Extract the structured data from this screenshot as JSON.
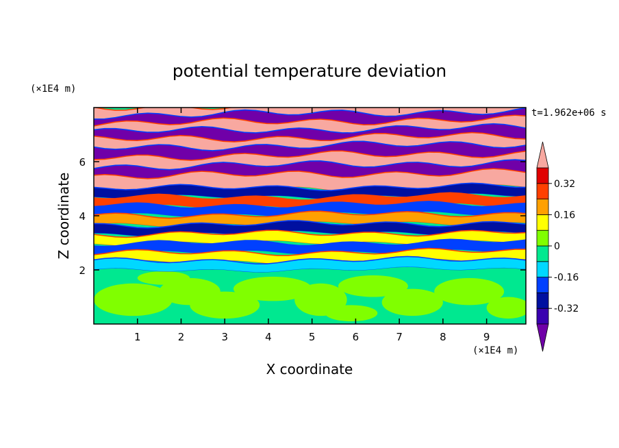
{
  "chart_data": {
    "type": "heatmap",
    "title": "potential temperature deviation",
    "xlabel": "X coordinate",
    "ylabel": "Z coordinate",
    "x_unit": "(×1E4 m)",
    "y_unit": "(×1E4 m)",
    "time_label": "t=1.962e+06 s",
    "x_ticks": [
      "1",
      "2",
      "3",
      "4",
      "5",
      "6",
      "7",
      "8",
      "9"
    ],
    "y_ticks": [
      "2",
      "4",
      "6"
    ],
    "xlim": [
      0,
      9.9
    ],
    "ylim": [
      0,
      8
    ],
    "colorbar": {
      "levels": [
        -0.4,
        -0.32,
        -0.24,
        -0.16,
        -0.08,
        0,
        0.08,
        0.16,
        0.24,
        0.32,
        0.4
      ],
      "labels": [
        "0.32",
        "0.16",
        "0",
        "-0.16",
        "-0.32"
      ],
      "colors": [
        "#7000a8",
        "#3a00b0",
        "#0010a0",
        "#0040ff",
        "#00d8ff",
        "#00e890",
        "#80ff00",
        "#ffff00",
        "#ffa000",
        "#ff4000",
        "#e00000",
        "#f8a8a0"
      ]
    },
    "bands": [
      {
        "y": 7.75,
        "v": 0.45
      },
      {
        "y": 7.45,
        "v": -0.45
      },
      {
        "y": 7.15,
        "v": 0.45
      },
      {
        "y": 6.85,
        "v": -0.45
      },
      {
        "y": 6.55,
        "v": 0.45
      },
      {
        "y": 6.25,
        "v": -0.45
      },
      {
        "y": 5.9,
        "v": 0.45
      },
      {
        "y": 5.55,
        "v": -0.45
      },
      {
        "y": 5.2,
        "v": 0.45
      },
      {
        "y": 4.85,
        "v": -0.3
      },
      {
        "y": 4.5,
        "v": 0.25
      },
      {
        "y": 4.2,
        "v": -0.2
      },
      {
        "y": 3.85,
        "v": 0.2
      },
      {
        "y": 3.5,
        "v": -0.25
      },
      {
        "y": 3.15,
        "v": 0.15
      },
      {
        "y": 2.8,
        "v": -0.2
      },
      {
        "y": 2.45,
        "v": 0.1
      },
      {
        "y": 2.15,
        "v": -0.1
      }
    ]
  }
}
